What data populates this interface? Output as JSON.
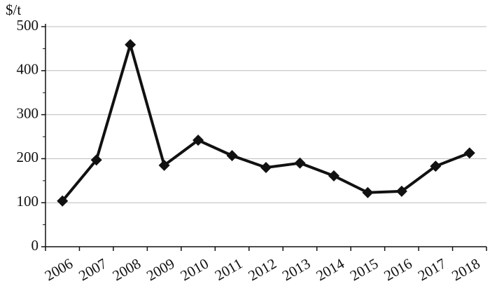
{
  "chart_data": {
    "type": "line",
    "y_label": "$/t",
    "categories": [
      "2006",
      "2007",
      "2008",
      "2009",
      "2010",
      "2011",
      "2012",
      "2013",
      "2014",
      "2015",
      "2016",
      "2017",
      "2018"
    ],
    "series": [
      {
        "name": null,
        "color": "#111111",
        "values": [
          104,
          197,
          459,
          185,
          242,
          207,
          180,
          190,
          161,
          123,
          126,
          183,
          213
        ]
      }
    ],
    "ylim": [
      0,
      500
    ],
    "yticks": [
      0,
      100,
      200,
      300,
      400,
      500
    ],
    "grid": true
  }
}
